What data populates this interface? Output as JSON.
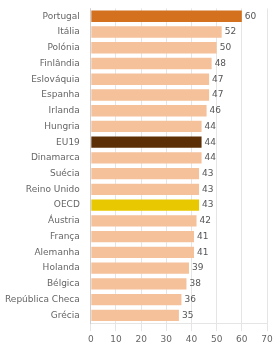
{
  "chart_data": {
    "type": "bar",
    "orientation": "horizontal",
    "categories": [
      "Portugal",
      "Itália",
      "Polónia",
      "Finlândia",
      "Eslováquia",
      "Espanha",
      "Irlanda",
      "Hungria",
      "EU19",
      "Dinamarca",
      "Suécia",
      "Reino Unido",
      "OECD",
      "Áustria",
      "França",
      "Alemanha",
      "Holanda",
      "Bélgica",
      "República Checa",
      "Grécia"
    ],
    "values": [
      60,
      52,
      50,
      48,
      47,
      47,
      46,
      44,
      44,
      44,
      43,
      43,
      43,
      42,
      41,
      41,
      39,
      38,
      36,
      35
    ],
    "colors": [
      "#d4711e",
      "#f5c19a",
      "#f5c19a",
      "#f5c19a",
      "#f5c19a",
      "#f5c19a",
      "#f5c19a",
      "#f5c19a",
      "#5c2f06",
      "#f5c19a",
      "#f5c19a",
      "#f5c19a",
      "#e8c800",
      "#f5c19a",
      "#f5c19a",
      "#f5c19a",
      "#f5c19a",
      "#f5c19a",
      "#f5c19a",
      "#f5c19a"
    ],
    "xlim": [
      0,
      70
    ],
    "xticks": [
      0,
      10,
      20,
      30,
      40,
      50,
      60,
      70
    ],
    "grid": true,
    "data_labels": true
  }
}
